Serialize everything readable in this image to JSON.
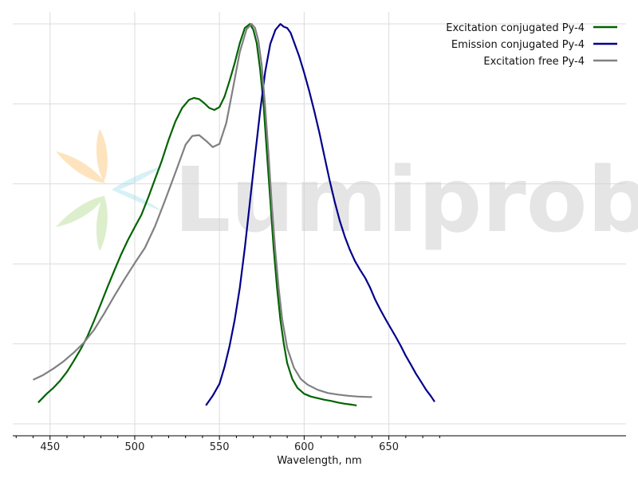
{
  "watermark": {
    "text": "Lumiprobe"
  },
  "chart_data": {
    "type": "line",
    "title": "",
    "xlabel": "Wavelength, nm",
    "ylabel": "",
    "xlim": [
      428,
      790
    ],
    "ylim": [
      -0.03,
      1.03
    ],
    "xticks": [
      450,
      500,
      550,
      600,
      650
    ],
    "xminor": [
      430,
      440,
      460,
      470,
      480,
      490,
      510,
      520,
      530,
      540,
      560,
      570,
      580,
      590,
      610,
      620,
      630,
      640,
      660,
      670,
      680
    ],
    "ygrid": [
      0.0,
      0.2,
      0.4,
      0.6,
      0.8,
      1.0
    ],
    "grid": true,
    "legend_position": "top-right",
    "series": [
      {
        "name": "Excitation conjugated Py-4",
        "color": "#006400",
        "x": [
          443,
          448,
          452,
          456,
          460,
          464,
          468,
          472,
          476,
          480,
          484,
          488,
          492,
          496,
          500,
          504,
          508,
          512,
          516,
          520,
          524,
          528,
          532,
          535,
          538,
          541,
          544,
          547,
          550,
          553,
          556,
          559,
          562,
          565,
          568,
          570,
          572,
          574,
          576,
          578,
          580,
          582,
          584,
          586,
          588,
          590,
          593,
          596,
          600,
          604,
          608,
          612,
          616,
          620,
          624,
          628,
          631
        ],
        "y": [
          0.053,
          0.075,
          0.09,
          0.108,
          0.13,
          0.157,
          0.186,
          0.218,
          0.258,
          0.3,
          0.343,
          0.384,
          0.424,
          0.46,
          0.492,
          0.523,
          0.566,
          0.612,
          0.658,
          0.71,
          0.756,
          0.79,
          0.81,
          0.815,
          0.812,
          0.802,
          0.79,
          0.785,
          0.792,
          0.818,
          0.858,
          0.902,
          0.952,
          0.99,
          1.0,
          0.985,
          0.952,
          0.888,
          0.8,
          0.68,
          0.56,
          0.44,
          0.34,
          0.26,
          0.2,
          0.152,
          0.112,
          0.09,
          0.075,
          0.068,
          0.064,
          0.06,
          0.057,
          0.053,
          0.05,
          0.048,
          0.046
        ]
      },
      {
        "name": "Emission conjugated Py-4",
        "color": "#00008B",
        "x": [
          542,
          546,
          550,
          553,
          556,
          559,
          562,
          565,
          568,
          571,
          574,
          577,
          580,
          583,
          586,
          588,
          590,
          592,
          594,
          597,
          600,
          603,
          606,
          609,
          612,
          615,
          618,
          621,
          624,
          627,
          630,
          633,
          636,
          639,
          642,
          645,
          648,
          651,
          654,
          657,
          660,
          663,
          666,
          669,
          672,
          675,
          677
        ],
        "y": [
          0.046,
          0.07,
          0.1,
          0.142,
          0.195,
          0.26,
          0.34,
          0.44,
          0.555,
          0.67,
          0.78,
          0.88,
          0.95,
          0.985,
          1.0,
          0.993,
          0.99,
          0.978,
          0.955,
          0.92,
          0.878,
          0.832,
          0.782,
          0.728,
          0.668,
          0.61,
          0.556,
          0.508,
          0.468,
          0.435,
          0.407,
          0.385,
          0.365,
          0.34,
          0.31,
          0.285,
          0.262,
          0.24,
          0.218,
          0.195,
          0.17,
          0.148,
          0.125,
          0.105,
          0.085,
          0.068,
          0.055
        ]
      },
      {
        "name": "Excitation free Py-4",
        "color": "#808080",
        "x": [
          440,
          446,
          452,
          458,
          464,
          470,
          476,
          482,
          488,
          494,
          500,
          506,
          512,
          518,
          524,
          530,
          534,
          538,
          542,
          546,
          550,
          554,
          558,
          562,
          566,
          569,
          571,
          573,
          575,
          577,
          579,
          581,
          583,
          585,
          587,
          590,
          594,
          598,
          602,
          608,
          614,
          620,
          626,
          632,
          638,
          640
        ],
        "y": [
          0.11,
          0.122,
          0.138,
          0.156,
          0.178,
          0.203,
          0.235,
          0.276,
          0.32,
          0.362,
          0.402,
          0.44,
          0.494,
          0.56,
          0.628,
          0.698,
          0.72,
          0.722,
          0.708,
          0.692,
          0.7,
          0.752,
          0.84,
          0.93,
          0.987,
          1.0,
          0.99,
          0.958,
          0.895,
          0.792,
          0.672,
          0.542,
          0.43,
          0.338,
          0.262,
          0.19,
          0.14,
          0.112,
          0.098,
          0.085,
          0.077,
          0.073,
          0.07,
          0.068,
          0.067,
          0.067
        ]
      }
    ]
  }
}
